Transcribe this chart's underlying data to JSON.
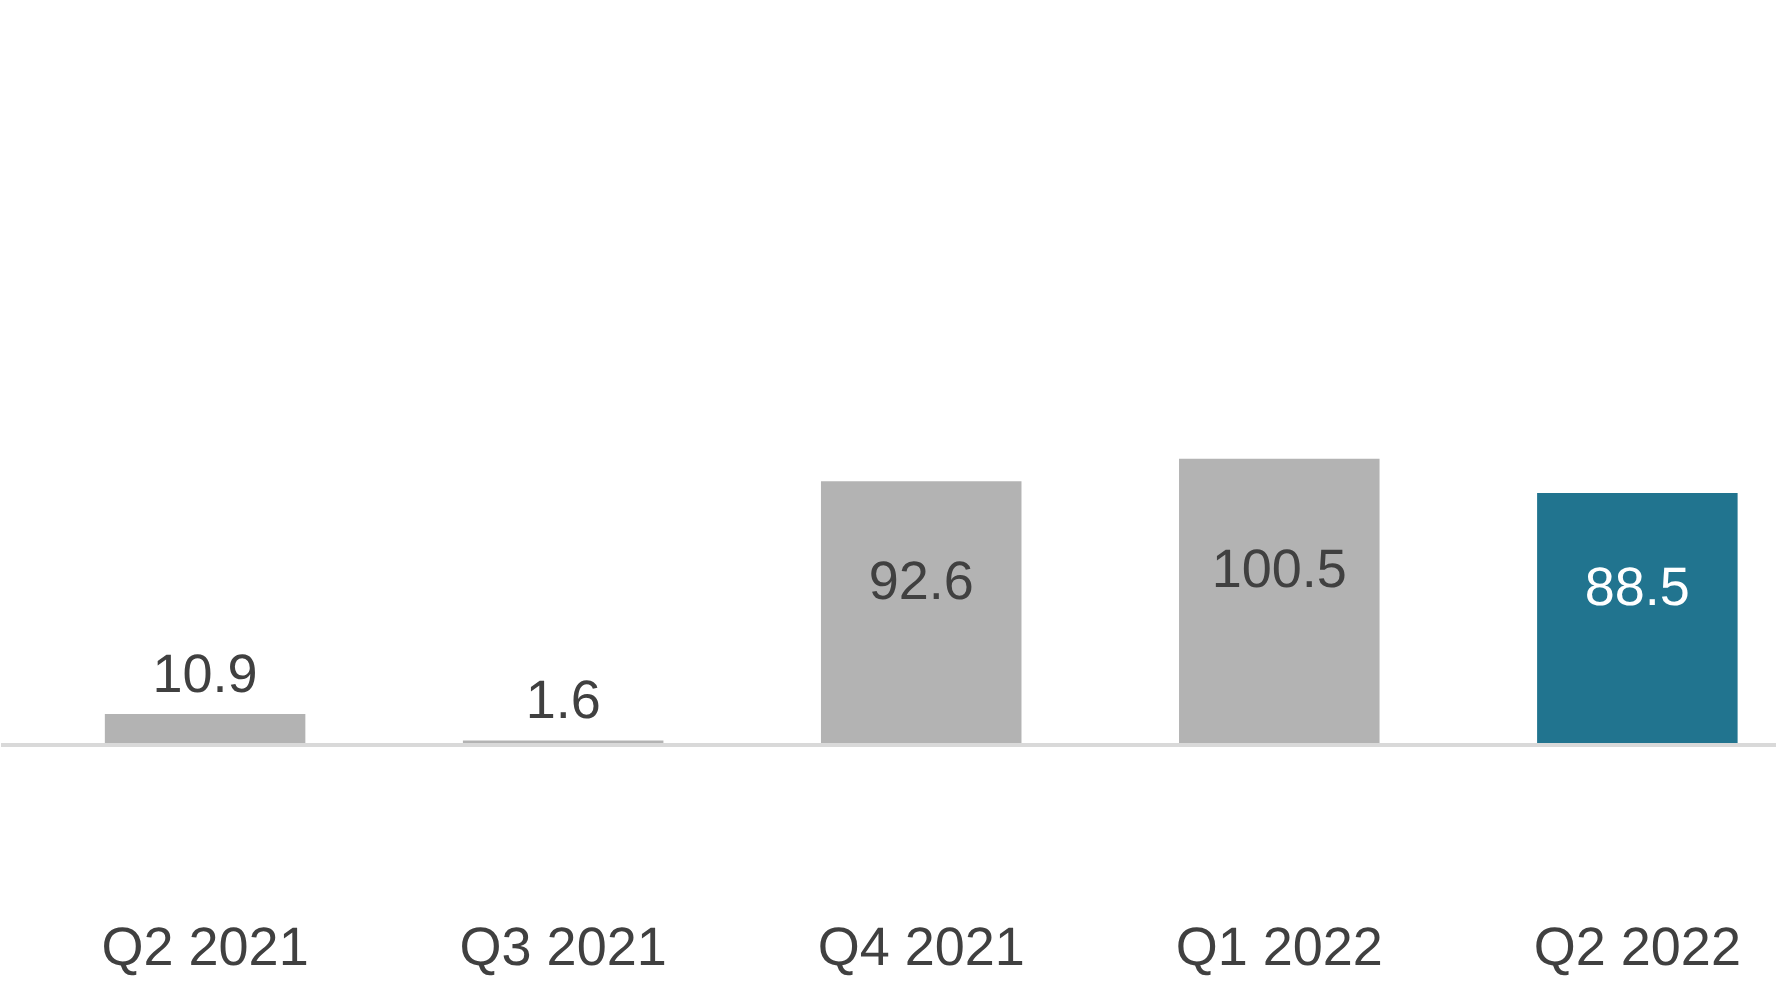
{
  "chart_data": {
    "type": "bar",
    "categories": [
      "Q2 2021",
      "Q3 2021",
      "Q4 2021",
      "Q1 2022",
      "Q2 2022"
    ],
    "values": [
      10.9,
      1.6,
      92.6,
      100.5,
      88.5
    ],
    "colors": [
      "#b3b3b3",
      "#b3b3b3",
      "#b3b3b3",
      "#b3b3b3",
      "#21748f"
    ],
    "data_labels": true,
    "grid": false
  }
}
